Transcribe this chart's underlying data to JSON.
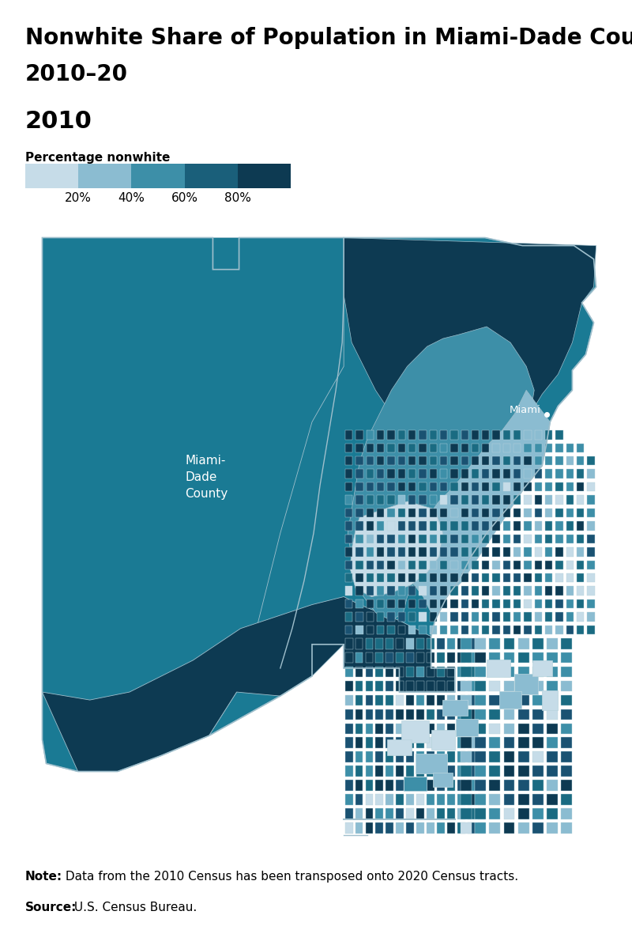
{
  "title_line1": "Nonwhite Share of Population in Miami-Dade County,",
  "title_line2": "2010–20",
  "subtitle": "2010",
  "legend_label": "Percentage nonwhite",
  "legend_ticks": [
    "20%",
    "40%",
    "60%",
    "80%"
  ],
  "legend_colors": [
    "#c6dce8",
    "#8bbcd1",
    "#3d8fa8",
    "#1a5f7a",
    "#0d3a52"
  ],
  "note_bold": "Note:",
  "note_text": " Data from the 2010 Census has been transposed onto 2020 Census tracts.",
  "source_bold": "Source:",
  "source_text": " U.S. Census Bureau.",
  "miami_label": "Miami",
  "county_label": "Miami-\nDade\nCounty",
  "bg_color": "#ffffff",
  "map_west_color": "#1a7a94",
  "map_dark_color": "#0d3a52",
  "map_medium_dark": "#1a5272",
  "map_medium": "#1a6b82",
  "map_teal": "#3d8fa8",
  "map_light": "#8bbcd1",
  "map_vlight": "#c6dce8",
  "border_color": "#9fbfcc",
  "tract_border": "#b8d4dd",
  "top_rule_color": "#000000",
  "bottom_rule_color": "#000000",
  "title_fontsize": 20,
  "subtitle_fontsize": 22,
  "legend_label_fontsize": 11,
  "legend_tick_fontsize": 11,
  "note_fontsize": 11
}
